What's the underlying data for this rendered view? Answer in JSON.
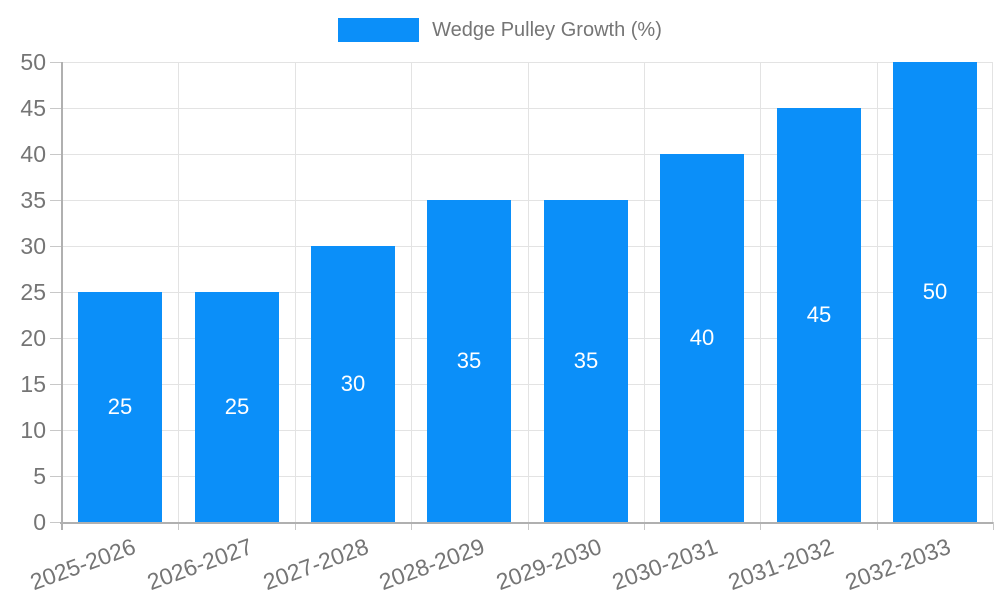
{
  "chart_data": {
    "type": "bar",
    "name": "Wedge Pulley Growth (%)",
    "title": "",
    "xlabel": "",
    "ylabel": "",
    "categories": [
      "2025-2026",
      "2026-2027",
      "2027-2028",
      "2028-2029",
      "2029-2030",
      "2030-2031",
      "2031-2032",
      "2032-2033"
    ],
    "values": [
      25,
      25,
      30,
      35,
      35,
      40,
      45,
      50
    ],
    "ylim": [
      0,
      50
    ],
    "ytick_step": 5,
    "yticks": [
      0,
      5,
      10,
      15,
      20,
      25,
      30,
      35,
      40,
      45,
      50
    ],
    "grid": true,
    "legend_position": "top",
    "x_label_rotation_deg": -20,
    "bar_color": "#0b8ff9",
    "value_label_color": "#ffffff",
    "text_color": "#757575",
    "grid_color": "#e3e3e3",
    "tick_color": "#c8c8c8",
    "axis_color": "#b0b0b0"
  }
}
